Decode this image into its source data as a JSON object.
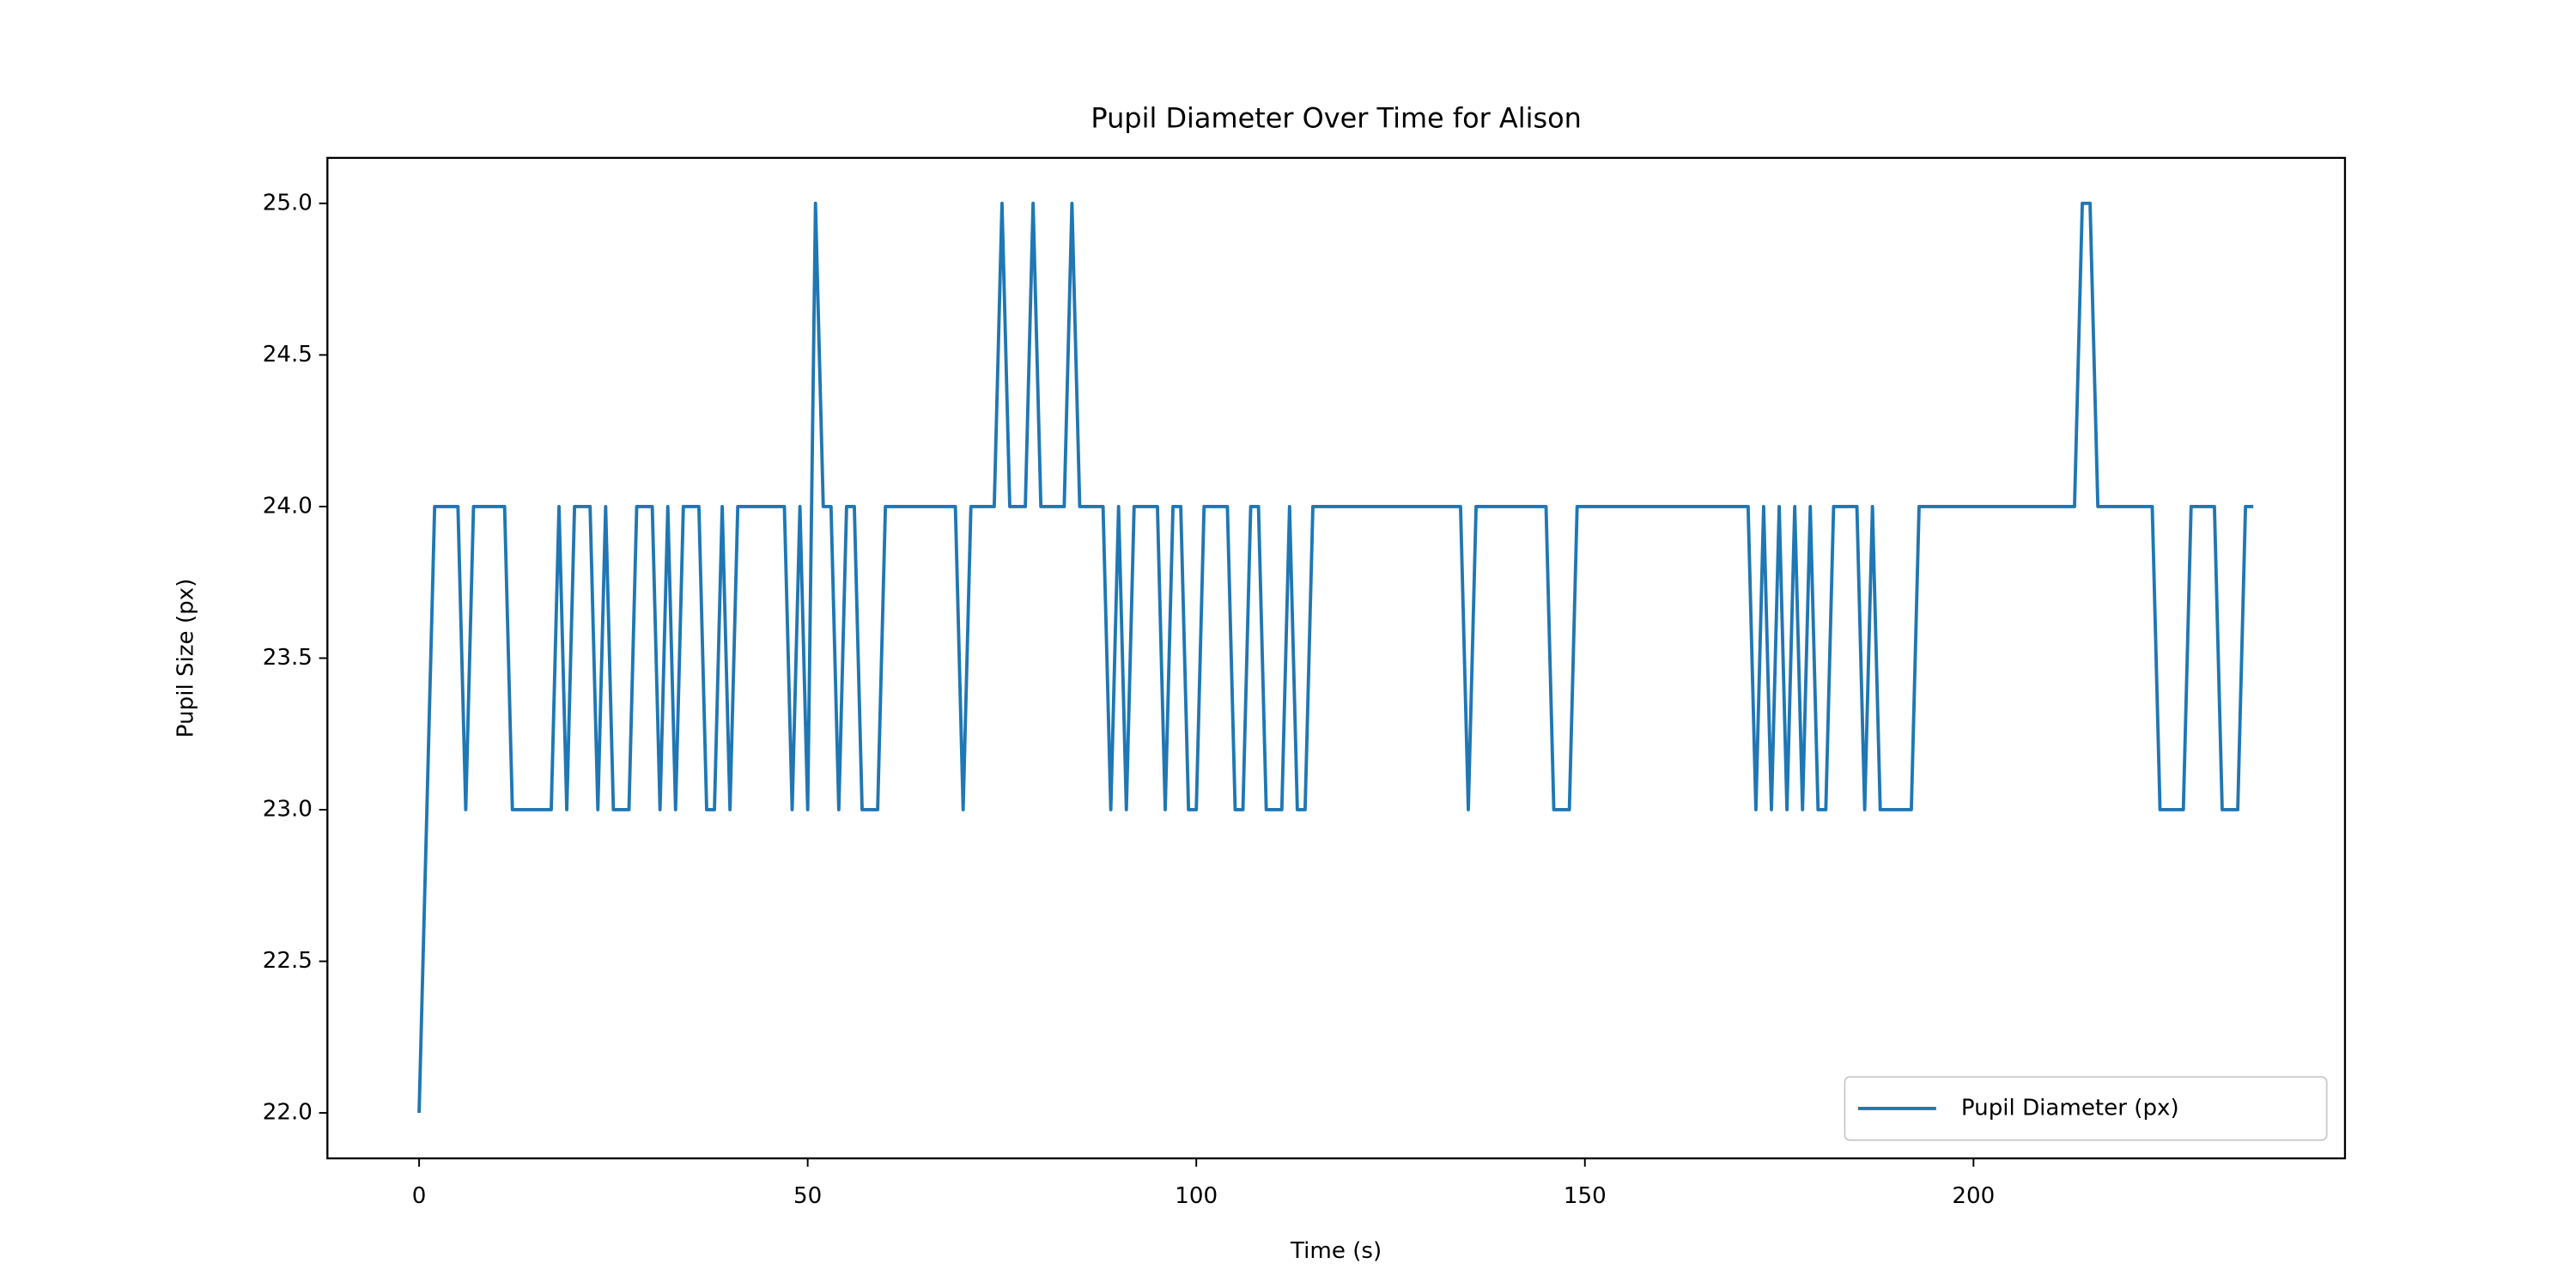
{
  "chart_data": {
    "type": "line",
    "title": "Pupil Diameter Over Time for Alison",
    "x_label": "Time (s)",
    "y_label": "Pupil Size (px)",
    "x": [
      0,
      1,
      2,
      3,
      4,
      5,
      6,
      7,
      8,
      9,
      10,
      11,
      12,
      13,
      14,
      15,
      16,
      17,
      18,
      19,
      20,
      21,
      22,
      23,
      24,
      25,
      26,
      27,
      28,
      29,
      30,
      31,
      32,
      33,
      34,
      35,
      36,
      37,
      38,
      39,
      40,
      41,
      42,
      43,
      44,
      45,
      46,
      47,
      48,
      49,
      50,
      51,
      52,
      53,
      54,
      55,
      56,
      57,
      58,
      59,
      60,
      61,
      62,
      63,
      64,
      65,
      66,
      67,
      68,
      69,
      70,
      71,
      72,
      73,
      74,
      75,
      76,
      77,
      78,
      79,
      80,
      81,
      82,
      83,
      84,
      85,
      86,
      87,
      88,
      89,
      90,
      91,
      92,
      93,
      94,
      95,
      96,
      97,
      98,
      99,
      100,
      101,
      102,
      103,
      104,
      105,
      106,
      107,
      108,
      109,
      110,
      111,
      112,
      113,
      114,
      115,
      116,
      117,
      118,
      119,
      120,
      121,
      122,
      123,
      124,
      125,
      126,
      127,
      128,
      129,
      130,
      131,
      132,
      133,
      134,
      135,
      136,
      137,
      138,
      139,
      140,
      141,
      142,
      143,
      144,
      145,
      146,
      147,
      148,
      149,
      150,
      151,
      152,
      153,
      154,
      155,
      156,
      157,
      158,
      159,
      160,
      161,
      162,
      163,
      164,
      165,
      166,
      167,
      168,
      169,
      170,
      171,
      172,
      173,
      174,
      175,
      176,
      177,
      178,
      179,
      180,
      181,
      182,
      183,
      184,
      185,
      186,
      187,
      188,
      189,
      190,
      191,
      192,
      193,
      194,
      195,
      196,
      197,
      198,
      199,
      200,
      201,
      202,
      203,
      204,
      205,
      206,
      207,
      208,
      209,
      210,
      211,
      212,
      213,
      214,
      215,
      216,
      217,
      218,
      219,
      220,
      221,
      222,
      223,
      224,
      225,
      226,
      227,
      228,
      229,
      230,
      231,
      232,
      233,
      234,
      235,
      236
    ],
    "series": [
      {
        "name": "Pupil Diameter (px)",
        "color": "#1f77b4",
        "values": [
          22,
          23,
          24,
          24,
          24,
          24,
          23,
          24,
          24,
          24,
          24,
          24,
          23,
          23,
          23,
          23,
          23,
          23,
          24,
          23,
          24,
          24,
          24,
          23,
          24,
          23,
          23,
          23,
          24,
          24,
          24,
          23,
          24,
          23,
          24,
          24,
          24,
          23,
          23,
          24,
          23,
          24,
          24,
          24,
          24,
          24,
          24,
          24,
          23,
          24,
          23,
          25,
          24,
          24,
          23,
          24,
          24,
          23,
          23,
          23,
          24,
          24,
          24,
          24,
          24,
          24,
          24,
          24,
          24,
          24,
          23,
          24,
          24,
          24,
          24,
          25,
          24,
          24,
          24,
          25,
          24,
          24,
          24,
          24,
          25,
          24,
          24,
          24,
          24,
          23,
          24,
          23,
          24,
          24,
          24,
          24,
          23,
          24,
          24,
          23,
          23,
          24,
          24,
          24,
          24,
          23,
          23,
          24,
          24,
          23,
          23,
          23,
          24,
          23,
          23,
          24,
          24,
          24,
          24,
          24,
          24,
          24,
          24,
          24,
          24,
          24,
          24,
          24,
          24,
          24,
          24,
          24,
          24,
          24,
          24,
          23,
          24,
          24,
          24,
          24,
          24,
          24,
          24,
          24,
          24,
          24,
          23,
          23,
          23,
          24,
          24,
          24,
          24,
          24,
          24,
          24,
          24,
          24,
          24,
          24,
          24,
          24,
          24,
          24,
          24,
          24,
          24,
          24,
          24,
          24,
          24,
          24,
          23,
          24,
          23,
          24,
          23,
          24,
          23,
          24,
          23,
          23,
          24,
          24,
          24,
          24,
          23,
          24,
          23,
          23,
          23,
          23,
          23,
          24,
          24,
          24,
          24,
          24,
          24,
          24,
          24,
          24,
          24,
          24,
          24,
          24,
          24,
          24,
          24,
          24,
          24,
          24,
          24,
          24,
          25,
          25,
          24,
          24,
          24,
          24,
          24,
          24,
          24,
          24,
          23,
          23,
          23,
          23,
          24,
          24,
          24,
          24,
          23,
          23,
          23,
          24,
          24
        ]
      }
    ],
    "xlim": [
      -11.8,
      247.8
    ],
    "ylim": [
      21.85,
      25.15
    ],
    "xticks": [
      0,
      50,
      100,
      150,
      200
    ],
    "yticks": [
      {
        "value": 22,
        "label": "22.0"
      },
      {
        "value": 22.5,
        "label": "22.5"
      },
      {
        "value": 23,
        "label": "23.0"
      },
      {
        "value": 23.5,
        "label": "23.5"
      },
      {
        "value": 24,
        "label": "24.0"
      },
      {
        "value": 24.5,
        "label": "24.5"
      },
      {
        "value": 25,
        "label": "25.0"
      }
    ],
    "grid": false,
    "legend": "lower right"
  }
}
